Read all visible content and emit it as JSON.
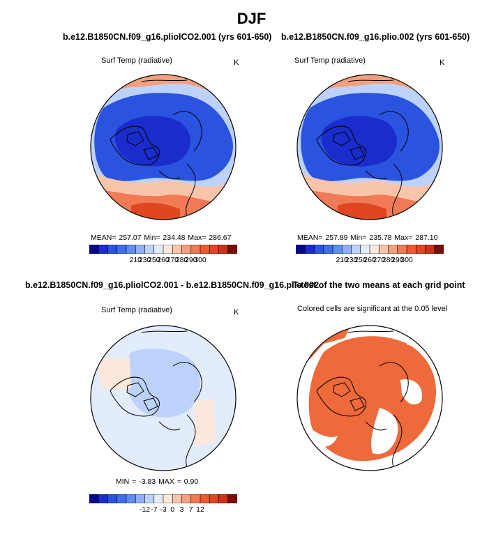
{
  "figure": {
    "title": "DJF",
    "panels": [
      {
        "title": "b.e12.B1850CN.f09_g16.pliolCO2.001 (yrs 601-650)",
        "variable_label": "Surf Temp (radiative)",
        "units_label": "K",
        "stats_text": "MEAN= 257.07   Min= 234.48   Max= 286.67"
      },
      {
        "title": "b.e12.B1850CN.f09_g16.plio.002 (yrs 601-650)",
        "variable_label": "Surf Temp (radiative)",
        "units_label": "K",
        "stats_text": "MEAN= 257.89   Min= 235.78   Max= 287.10"
      },
      {
        "title": "b.e12.B1850CN.f09_g16.pliolCO2.001 - b.e12.B1850CN.f09_g16.plio.002",
        "variable_label": "Surf Temp (radiative)",
        "units_label": "K",
        "stats_text": "MIN =   -3.83  MAX =    0.90"
      },
      {
        "title": "T-test of the two means at each grid point",
        "subtitle": "Colored cells are significant at the 0.05 level"
      }
    ],
    "colorbars": {
      "temperature_ticks": [
        "210",
        "230",
        "250",
        "260",
        "270",
        "280",
        "290",
        "300"
      ],
      "difference_ticks": [
        "-12",
        "-7",
        "-3",
        "0",
        "3",
        "7",
        "12"
      ]
    }
  },
  "chart_data": [
    {
      "type": "heatmap",
      "projection": "north polar stereographic",
      "title": "b.e12.B1850CN.f09_g16.pliolCO2.001 (yrs 601-650)",
      "variable": "Surf Temp (radiative)",
      "units": "K",
      "mean": 257.07,
      "min": 234.48,
      "max": 286.67,
      "levels": [
        210,
        230,
        250,
        260,
        270,
        280,
        290,
        300
      ]
    },
    {
      "type": "heatmap",
      "projection": "north polar stereographic",
      "title": "b.e12.B1850CN.f09_g16.plio.002 (yrs 601-650)",
      "variable": "Surf Temp (radiative)",
      "units": "K",
      "mean": 257.89,
      "min": 235.78,
      "max": 287.1,
      "levels": [
        210,
        230,
        250,
        260,
        270,
        280,
        290,
        300
      ]
    },
    {
      "type": "heatmap",
      "projection": "north polar stereographic",
      "title": "b.e12.B1850CN.f09_g16.pliolCO2.001 - b.e12.B1850CN.f09_g16.plio.002",
      "variable": "Surf Temp (radiative)",
      "units": "K",
      "min": -3.83,
      "max": 0.9,
      "levels": [
        -12,
        -7,
        -3,
        0,
        3,
        7,
        12
      ]
    },
    {
      "type": "heatmap",
      "projection": "north polar stereographic",
      "title": "T-test of the two means at each grid point",
      "note": "Colored cells are significant at the 0.05 level",
      "significance_level": 0.05
    }
  ],
  "colors": {
    "temperature_scale": [
      "#08088c",
      "#1a2ccc",
      "#2a53e0",
      "#3f6ee8",
      "#5f8ef0",
      "#8fb0f6",
      "#bdd2fa",
      "#e2ecfd",
      "#fde9dc",
      "#f9c5aa",
      "#f4a07e",
      "#f07a55",
      "#ec5a30",
      "#e0461f",
      "#c93416",
      "#7a0c08"
    ],
    "difference_scale": [
      "#08088c",
      "#1a2ccc",
      "#2a53e0",
      "#3f6ee8",
      "#5f8ef0",
      "#8fb0f6",
      "#bdd2fa",
      "#e2ecfd",
      "#fde9dc",
      "#f9c5aa",
      "#f4a07e",
      "#f07a55",
      "#ec5a30",
      "#e0461f",
      "#c93416",
      "#7a0c08"
    ],
    "significance": "#ee6a3a"
  }
}
